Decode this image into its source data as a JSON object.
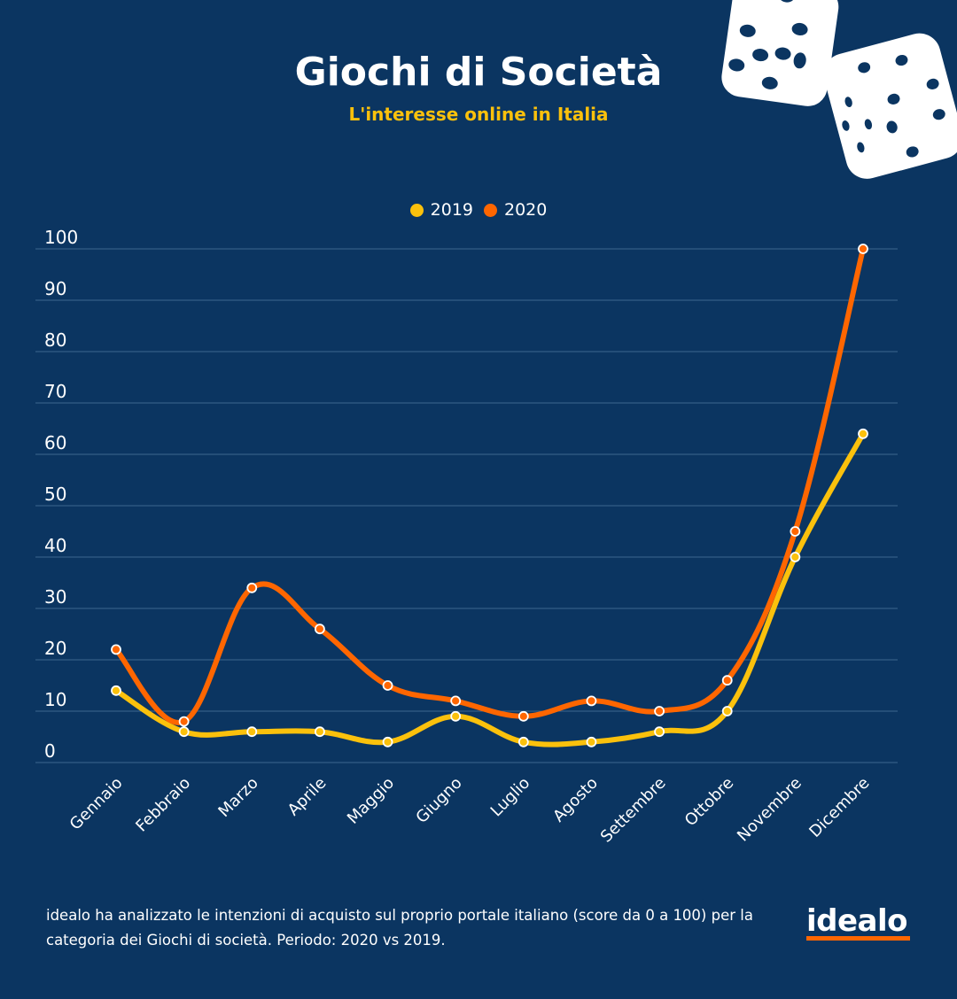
{
  "title": "Giochi di Società",
  "subtitle": "L'interesse online in Italia",
  "footer": "idealo ha analizzato le intenzioni di acquisto sul proprio portale italiano (score da 0 a 100) per la categoria dei Giochi di società. Periodo: 2020 vs 2019.",
  "logo": "idealo",
  "colors": {
    "background": "#0b3561",
    "series2019": "#fbc10c",
    "series2020": "#ff6600",
    "accent": "#ff6600"
  },
  "chart_data": {
    "type": "line",
    "title": "Giochi di Società",
    "subtitle": "L'interesse online in Italia",
    "xlabel": "",
    "ylabel": "",
    "ylim": [
      0,
      100
    ],
    "yticks": [
      0,
      10,
      20,
      30,
      40,
      50,
      60,
      70,
      80,
      90,
      100
    ],
    "grid": true,
    "legend_position": "top-center",
    "categories": [
      "Gennaio",
      "Febbraio",
      "Marzo",
      "Aprile",
      "Maggio",
      "Giugno",
      "Luglio",
      "Agosto",
      "Settembre",
      "Ottobre",
      "Novembre",
      "Dicembre"
    ],
    "series": [
      {
        "name": "2019",
        "color": "#fbc10c",
        "values": [
          14,
          6,
          6,
          6,
          4,
          9,
          4,
          4,
          6,
          10,
          40,
          64
        ]
      },
      {
        "name": "2020",
        "color": "#ff6600",
        "values": [
          22,
          8,
          34,
          26,
          15,
          12,
          9,
          12,
          10,
          16,
          45,
          100
        ]
      }
    ]
  }
}
